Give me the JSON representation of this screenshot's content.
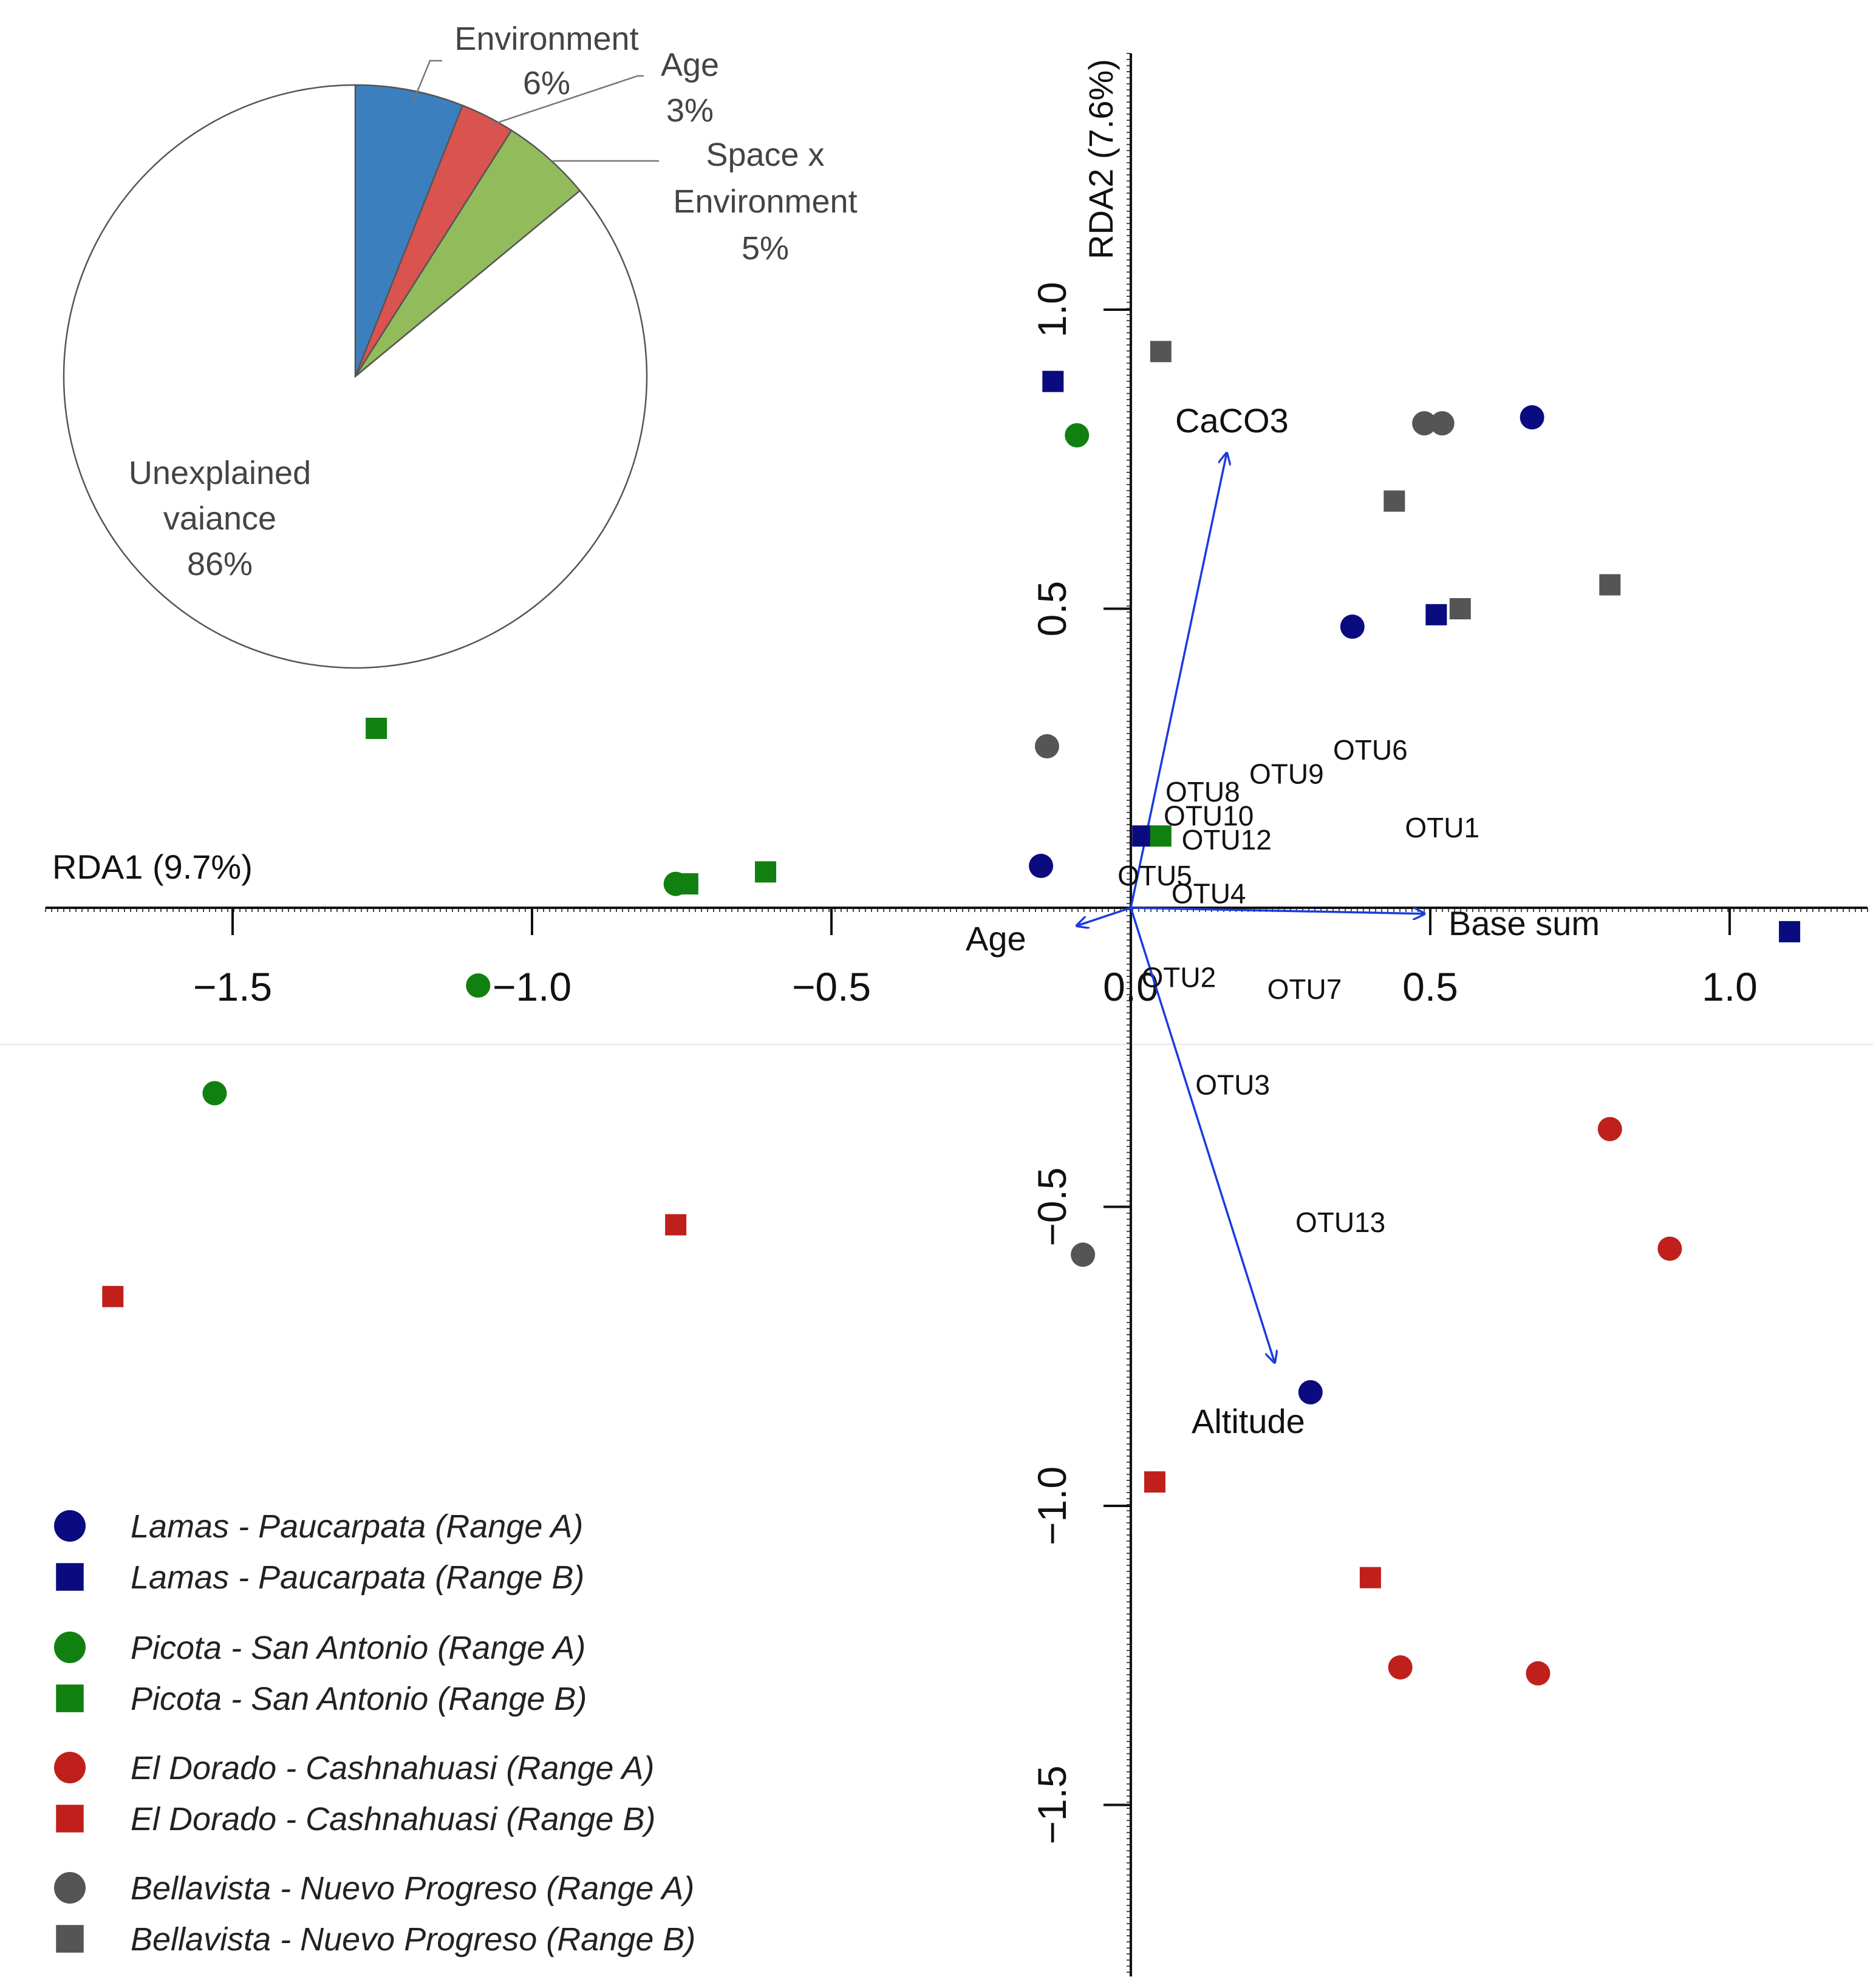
{
  "colors": {
    "lamas": "#0b0b80",
    "picota": "#108010",
    "dorado": "#c0201c",
    "bellavista": "#555555",
    "arrow": "#1a3be0",
    "pie_environment": "#3c7fbf",
    "pie_age": "#d9534f",
    "pie_space_env": "#92bc5c",
    "pie_unexplained": "#ffffff"
  },
  "chart_data": [
    {
      "type": "scatter",
      "xlabel": "RDA1 (9.7%)",
      "ylabel": "RDA2 (7.6%)",
      "xlim": [
        -1.85,
        1.25
      ],
      "ylim": [
        -1.8,
        1.45
      ],
      "x_ticks": [
        -1.5,
        -1.0,
        -0.5,
        0.0,
        0.5,
        1.0
      ],
      "x_tick_labels": [
        "−1.5",
        "−1.0",
        "−0.5",
        "0.0",
        "0.5",
        "1.0"
      ],
      "y_ticks": [
        -1.5,
        -1.0,
        -0.5,
        0.5,
        1.0
      ],
      "y_tick_labels": [
        "−1.5",
        "−1.0",
        "−0.5",
        "0.5",
        "1.0"
      ],
      "grid": false,
      "legend_position": "bottom-left",
      "series": [
        {
          "name": "Lamas - Paucarpata (Range A)",
          "group": "lamas",
          "marker": "circle",
          "points": [
            [
              0.67,
              0.82
            ],
            [
              0.37,
              0.47
            ],
            [
              -0.15,
              0.07
            ],
            [
              0.3,
              -0.81
            ]
          ]
        },
        {
          "name": "Lamas - Paucarpata (Range B)",
          "group": "lamas",
          "marker": "square",
          "points": [
            [
              -0.13,
              0.88
            ],
            [
              0.51,
              0.49
            ],
            [
              0.02,
              0.12
            ],
            [
              1.1,
              -0.04
            ]
          ]
        },
        {
          "name": "Picota - San Antonio (Range A)",
          "group": "picota",
          "marker": "circle",
          "points": [
            [
              -0.09,
              0.79
            ],
            [
              -0.76,
              0.04
            ],
            [
              -1.09,
              -0.13
            ],
            [
              -1.53,
              -0.31
            ]
          ]
        },
        {
          "name": "Picota - San Antonio (Range B)",
          "group": "picota",
          "marker": "square",
          "points": [
            [
              -1.26,
              0.3
            ],
            [
              -0.74,
              0.04
            ],
            [
              -0.61,
              0.06
            ],
            [
              0.05,
              0.12
            ]
          ]
        },
        {
          "name": "El Dorado - Cashnahuasi (Range A)",
          "group": "dorado",
          "marker": "circle",
          "points": [
            [
              0.8,
              -0.37
            ],
            [
              0.9,
              -0.57
            ],
            [
              0.45,
              -1.27
            ],
            [
              0.68,
              -1.28
            ]
          ]
        },
        {
          "name": "El Dorado - Cashnahuasi (Range B)",
          "group": "dorado",
          "marker": "square",
          "points": [
            [
              -1.7,
              -0.65
            ],
            [
              -0.76,
              -0.53
            ],
            [
              0.04,
              -0.96
            ],
            [
              0.4,
              -1.12
            ]
          ]
        },
        {
          "name": "Bellavista - Nuevo Progreso (Range A)",
          "group": "bellavista",
          "marker": "circle",
          "points": [
            [
              0.49,
              0.81
            ],
            [
              0.52,
              0.81
            ],
            [
              -0.14,
              0.27
            ],
            [
              -0.08,
              -0.58
            ]
          ]
        },
        {
          "name": "Bellavista - Nuevo Progreso (Range B)",
          "group": "bellavista",
          "marker": "square",
          "points": [
            [
              0.05,
              0.93
            ],
            [
              0.44,
              0.68
            ],
            [
              0.55,
              0.5
            ],
            [
              0.8,
              0.54
            ]
          ]
        }
      ],
      "vectors": [
        {
          "label": "CaCO3",
          "x": 0.16,
          "y": 0.76
        },
        {
          "label": "Base sum",
          "x": 0.49,
          "y": -0.01
        },
        {
          "label": "Age",
          "x": -0.09,
          "y": -0.03
        },
        {
          "label": "Altitude",
          "x": 0.24,
          "y": -0.76
        }
      ],
      "species_labels": [
        {
          "label": "OTU6",
          "x": 0.4,
          "y": 0.26
        },
        {
          "label": "OTU9",
          "x": 0.26,
          "y": 0.22
        },
        {
          "label": "OTU8",
          "x": 0.12,
          "y": 0.19
        },
        {
          "label": "OTU10",
          "x": 0.13,
          "y": 0.15
        },
        {
          "label": "OTU12",
          "x": 0.16,
          "y": 0.11
        },
        {
          "label": "OTU1",
          "x": 0.52,
          "y": 0.13
        },
        {
          "label": "OTU5",
          "x": 0.04,
          "y": 0.05
        },
        {
          "label": "OTU4",
          "x": 0.13,
          "y": 0.02
        },
        {
          "label": "OTU2",
          "x": 0.08,
          "y": -0.12
        },
        {
          "label": "OTU7",
          "x": 0.29,
          "y": -0.14
        },
        {
          "label": "OTU3",
          "x": 0.17,
          "y": -0.3
        },
        {
          "label": "OTU13",
          "x": 0.35,
          "y": -0.53
        }
      ]
    },
    {
      "type": "pie",
      "slices": [
        {
          "label": "Environment",
          "value": 6,
          "display": "6%",
          "color_key": "pie_environment"
        },
        {
          "label": "Age",
          "value": 3,
          "display": "3%",
          "color_key": "pie_age"
        },
        {
          "label": "Space x Environment",
          "display_lines": [
            "Space x",
            "Environment"
          ],
          "value": 5,
          "display": "5%",
          "color_key": "pie_space_env"
        },
        {
          "label": "Unexplained vaiance",
          "display_lines": [
            "Unexplained",
            "vaiance"
          ],
          "value": 86,
          "display": "86%",
          "color_key": "pie_unexplained"
        }
      ]
    }
  ]
}
